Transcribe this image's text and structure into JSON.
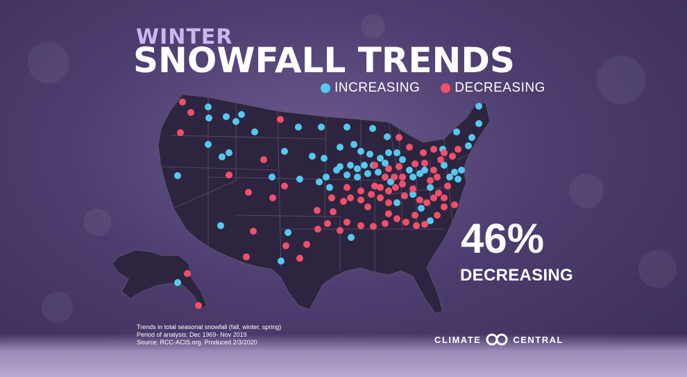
{
  "title_line1": "WINTER",
  "title_line2": "SNOWFALL TRENDS",
  "legend": {
    "increasing": {
      "label": "INCREASING",
      "color": "#56c8ee"
    },
    "decreasing": {
      "label": "DECREASING",
      "color": "#f0506a"
    }
  },
  "stat": {
    "value": "46%",
    "label": "DECREASING"
  },
  "notes": [
    "Trends in total seasonal snowfall (fall, winter, spring)",
    "Period of analysis: Dec 1969- Nov 2019",
    "Source: RCC-ACIS.org. Produced 2/3/2020"
  ],
  "brand": {
    "left": "CLIMATE",
    "right": "CENTRAL"
  },
  "colors": {
    "map_fill": "#2d2540",
    "map_border": "#5c5070",
    "text": "#ffffff"
  }
}
